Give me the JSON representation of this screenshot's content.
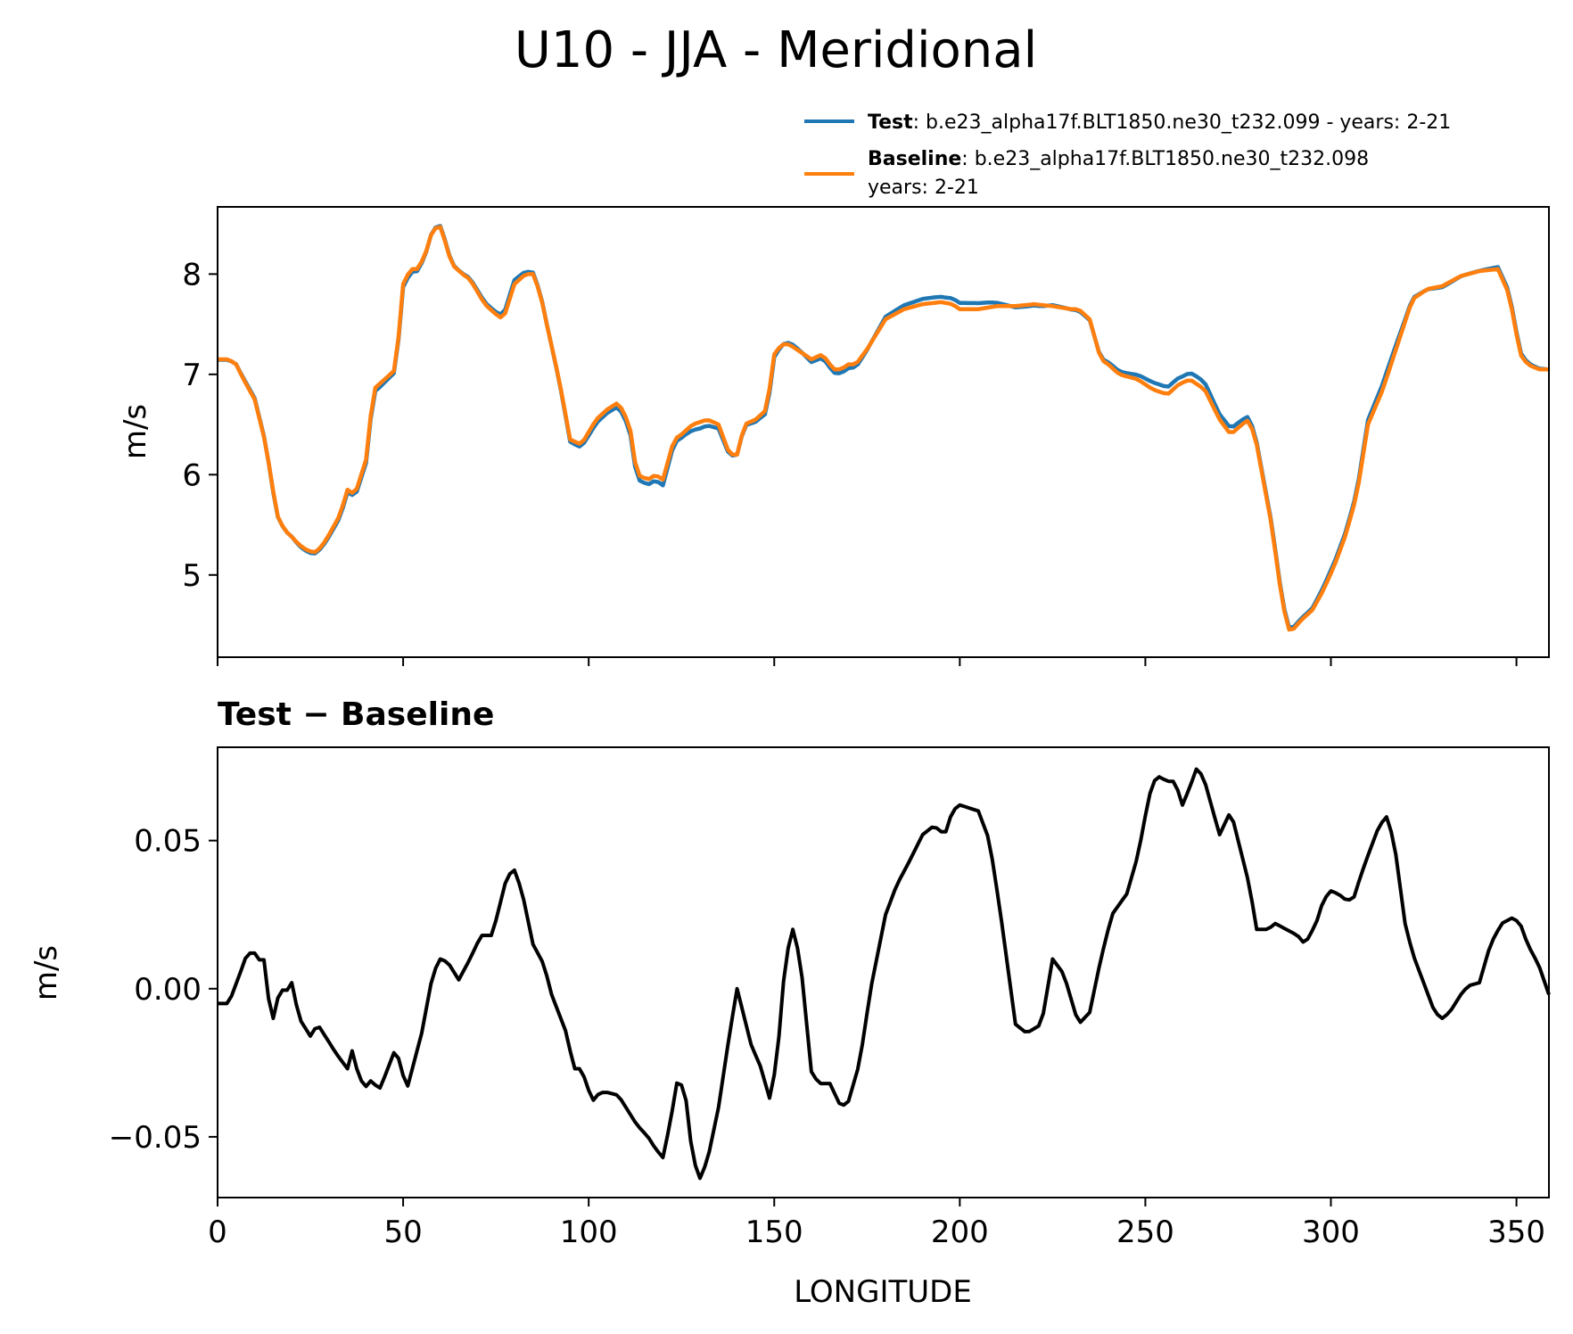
{
  "chart_data": [
    {
      "type": "line",
      "id": "top",
      "title": "U10 - JJA - Meridional",
      "xlabel": "",
      "ylabel": "m/s",
      "xlim": [
        0,
        358.75
      ],
      "ylim": [
        4.18,
        8.67
      ],
      "yticks": [
        5,
        6,
        7,
        8
      ],
      "ytick_labels": [
        "5",
        "6",
        "7",
        "8"
      ],
      "xticks": [
        0,
        50,
        100,
        150,
        200,
        250,
        300,
        350
      ],
      "legend_position": "above-right",
      "series": [
        {
          "name": "Test",
          "label_bold": "Test",
          "label_rest": ": b.e23_alpha17f.BLT1850.ne30_t232.099 - years: 2-21",
          "label_line2": "",
          "color": "#1f77b4",
          "knots_x": [
            0,
            3,
            5,
            7,
            10,
            13,
            16,
            18,
            20,
            22,
            24,
            26,
            28,
            30,
            33,
            35,
            37,
            40,
            42,
            45,
            48,
            50,
            52,
            54,
            56,
            58,
            60,
            62,
            63,
            66,
            68,
            72,
            75,
            77,
            80,
            83,
            85,
            87,
            89,
            92,
            95,
            98,
            102,
            105,
            108,
            111,
            113,
            116,
            118,
            120,
            123,
            125,
            128,
            132,
            135,
            138,
            140,
            142,
            145,
            148,
            150,
            152,
            154,
            156,
            160,
            163,
            166,
            168,
            170,
            172,
            175,
            180,
            185,
            190,
            195,
            198,
            200,
            205,
            210,
            215,
            220,
            225,
            230,
            232,
            235,
            238,
            240,
            243,
            248,
            252,
            256,
            259,
            262,
            266,
            270,
            273,
            276,
            278,
            280,
            284,
            287,
            289,
            292,
            295,
            298,
            301,
            304,
            307,
            310,
            314,
            318,
            322,
            326,
            330,
            335,
            340,
            345,
            348,
            351,
            353,
            356,
            358.75
          ],
          "knots_y": [
            7.15,
            7.15,
            7.1,
            6.95,
            6.75,
            6.3,
            5.6,
            5.45,
            5.38,
            5.3,
            5.25,
            5.22,
            5.28,
            5.4,
            5.6,
            5.85,
            5.8,
            6.15,
            6.85,
            6.95,
            7.05,
            7.9,
            8.05,
            8.05,
            8.2,
            8.45,
            8.47,
            8.25,
            8.1,
            8.0,
            7.95,
            7.7,
            7.6,
            7.55,
            7.9,
            8.0,
            8.0,
            7.8,
            7.45,
            6.95,
            6.35,
            6.3,
            6.55,
            6.65,
            6.72,
            6.5,
            6.0,
            5.95,
            6.0,
            5.95,
            6.35,
            6.4,
            6.5,
            6.55,
            6.5,
            6.2,
            6.2,
            6.5,
            6.55,
            6.65,
            7.2,
            7.3,
            7.3,
            7.25,
            7.15,
            7.2,
            7.05,
            7.05,
            7.1,
            7.1,
            7.25,
            7.55,
            7.65,
            7.7,
            7.72,
            7.7,
            7.65,
            7.65,
            7.68,
            7.68,
            7.7,
            7.68,
            7.65,
            7.65,
            7.55,
            7.15,
            7.1,
            7.0,
            6.95,
            6.85,
            6.8,
            6.9,
            6.95,
            6.85,
            6.55,
            6.4,
            6.5,
            6.55,
            6.3,
            5.5,
            4.7,
            4.42,
            4.55,
            4.65,
            4.85,
            5.1,
            5.4,
            5.8,
            6.5,
            6.85,
            7.3,
            7.75,
            7.85,
            7.88,
            7.98,
            8.03,
            8.05,
            7.8,
            7.2,
            7.1,
            7.05,
            7.05
          ]
        },
        {
          "name": "Baseline",
          "label_bold": "Baseline",
          "label_rest": ": b.e23_alpha17f.BLT1850.ne30_t232.098",
          "label_line2": "years: 2-21",
          "color": "#ff7f0e"
        }
      ]
    },
    {
      "type": "line",
      "id": "bottom",
      "title": "Test − Baseline",
      "xlabel": "LONGITUDE",
      "ylabel": "m/s",
      "xlim": [
        0,
        358.75
      ],
      "ylim": [
        -0.0705,
        0.0815
      ],
      "yticks": [
        -0.05,
        0.0,
        0.05
      ],
      "ytick_labels": [
        "−0.05",
        "0.00",
        "0.05"
      ],
      "xticks": [
        0,
        50,
        100,
        150,
        200,
        250,
        300,
        350
      ],
      "xtick_labels": [
        "0",
        "50",
        "100",
        "150",
        "200",
        "250",
        "300",
        "350"
      ],
      "series": [
        {
          "name": "Test − Baseline",
          "color": "#000000",
          "knots_x": [
            0,
            3,
            6,
            8,
            10,
            11,
            12,
            14,
            15,
            17,
            18,
            20,
            22,
            25,
            27,
            30,
            32,
            35,
            36,
            37,
            38,
            40,
            42,
            43,
            44,
            48,
            51,
            55,
            58,
            60,
            62,
            65,
            68,
            71,
            74,
            78,
            80,
            82,
            85,
            88,
            90,
            94,
            96,
            98,
            101,
            103,
            105,
            108,
            110,
            113,
            116,
            118,
            120,
            122,
            124,
            126,
            128,
            130,
            132,
            135,
            138,
            140,
            142,
            144,
            146,
            149,
            151,
            153,
            155,
            157,
            160,
            162,
            165,
            168,
            170,
            173,
            176,
            180,
            183,
            186,
            190,
            193,
            196,
            198,
            200,
            205,
            208,
            211,
            215,
            218,
            222,
            225,
            228,
            232,
            235,
            238,
            241,
            245,
            248,
            251,
            253,
            256,
            258,
            260,
            262,
            264,
            266,
            270,
            273,
            276,
            278,
            280,
            283,
            285,
            288,
            291,
            293,
            296,
            298,
            300,
            302,
            304,
            306,
            308,
            310,
            313,
            315,
            317,
            320,
            322,
            325,
            328,
            330,
            332,
            335,
            337,
            340,
            343,
            346,
            349,
            351,
            353,
            356,
            358.75
          ],
          "knots_y": [
            -0.005,
            -0.005,
            0.005,
            0.012,
            0.012,
            0.008,
            0.015,
            -0.006,
            -0.01,
            0.001,
            -0.002,
            0.002,
            -0.01,
            -0.016,
            -0.012,
            -0.018,
            -0.022,
            -0.027,
            -0.02,
            -0.024,
            -0.03,
            -0.033,
            -0.03,
            -0.035,
            -0.033,
            -0.02,
            -0.034,
            -0.015,
            0.005,
            0.01,
            0.009,
            0.003,
            0.01,
            0.018,
            0.018,
            0.038,
            0.04,
            0.033,
            0.015,
            0.008,
            -0.002,
            -0.015,
            -0.027,
            -0.027,
            -0.038,
            -0.035,
            -0.035,
            -0.036,
            -0.04,
            -0.046,
            -0.05,
            -0.054,
            -0.057,
            -0.045,
            -0.03,
            -0.035,
            -0.057,
            -0.064,
            -0.058,
            -0.04,
            -0.015,
            0.0,
            -0.01,
            -0.02,
            -0.025,
            -0.038,
            -0.02,
            0.01,
            0.02,
            0.01,
            -0.028,
            -0.032,
            -0.032,
            -0.04,
            -0.038,
            -0.025,
            0.0,
            0.025,
            0.035,
            0.042,
            0.052,
            0.055,
            0.052,
            0.06,
            0.062,
            0.06,
            0.05,
            0.025,
            -0.012,
            -0.015,
            -0.012,
            0.01,
            0.005,
            -0.012,
            -0.008,
            0.01,
            0.025,
            0.032,
            0.045,
            0.065,
            0.072,
            0.07,
            0.07,
            0.062,
            0.068,
            0.075,
            0.07,
            0.052,
            0.06,
            0.045,
            0.035,
            0.02,
            0.02,
            0.022,
            0.02,
            0.018,
            0.015,
            0.022,
            0.03,
            0.033,
            0.032,
            0.03,
            0.03,
            0.038,
            0.045,
            0.055,
            0.058,
            0.05,
            0.022,
            0.012,
            0.002,
            -0.008,
            -0.01,
            -0.008,
            -0.002,
            0.001,
            0.002,
            0.015,
            0.022,
            0.024,
            0.022,
            0.015,
            0.008,
            -0.002
          ]
        }
      ]
    }
  ]
}
